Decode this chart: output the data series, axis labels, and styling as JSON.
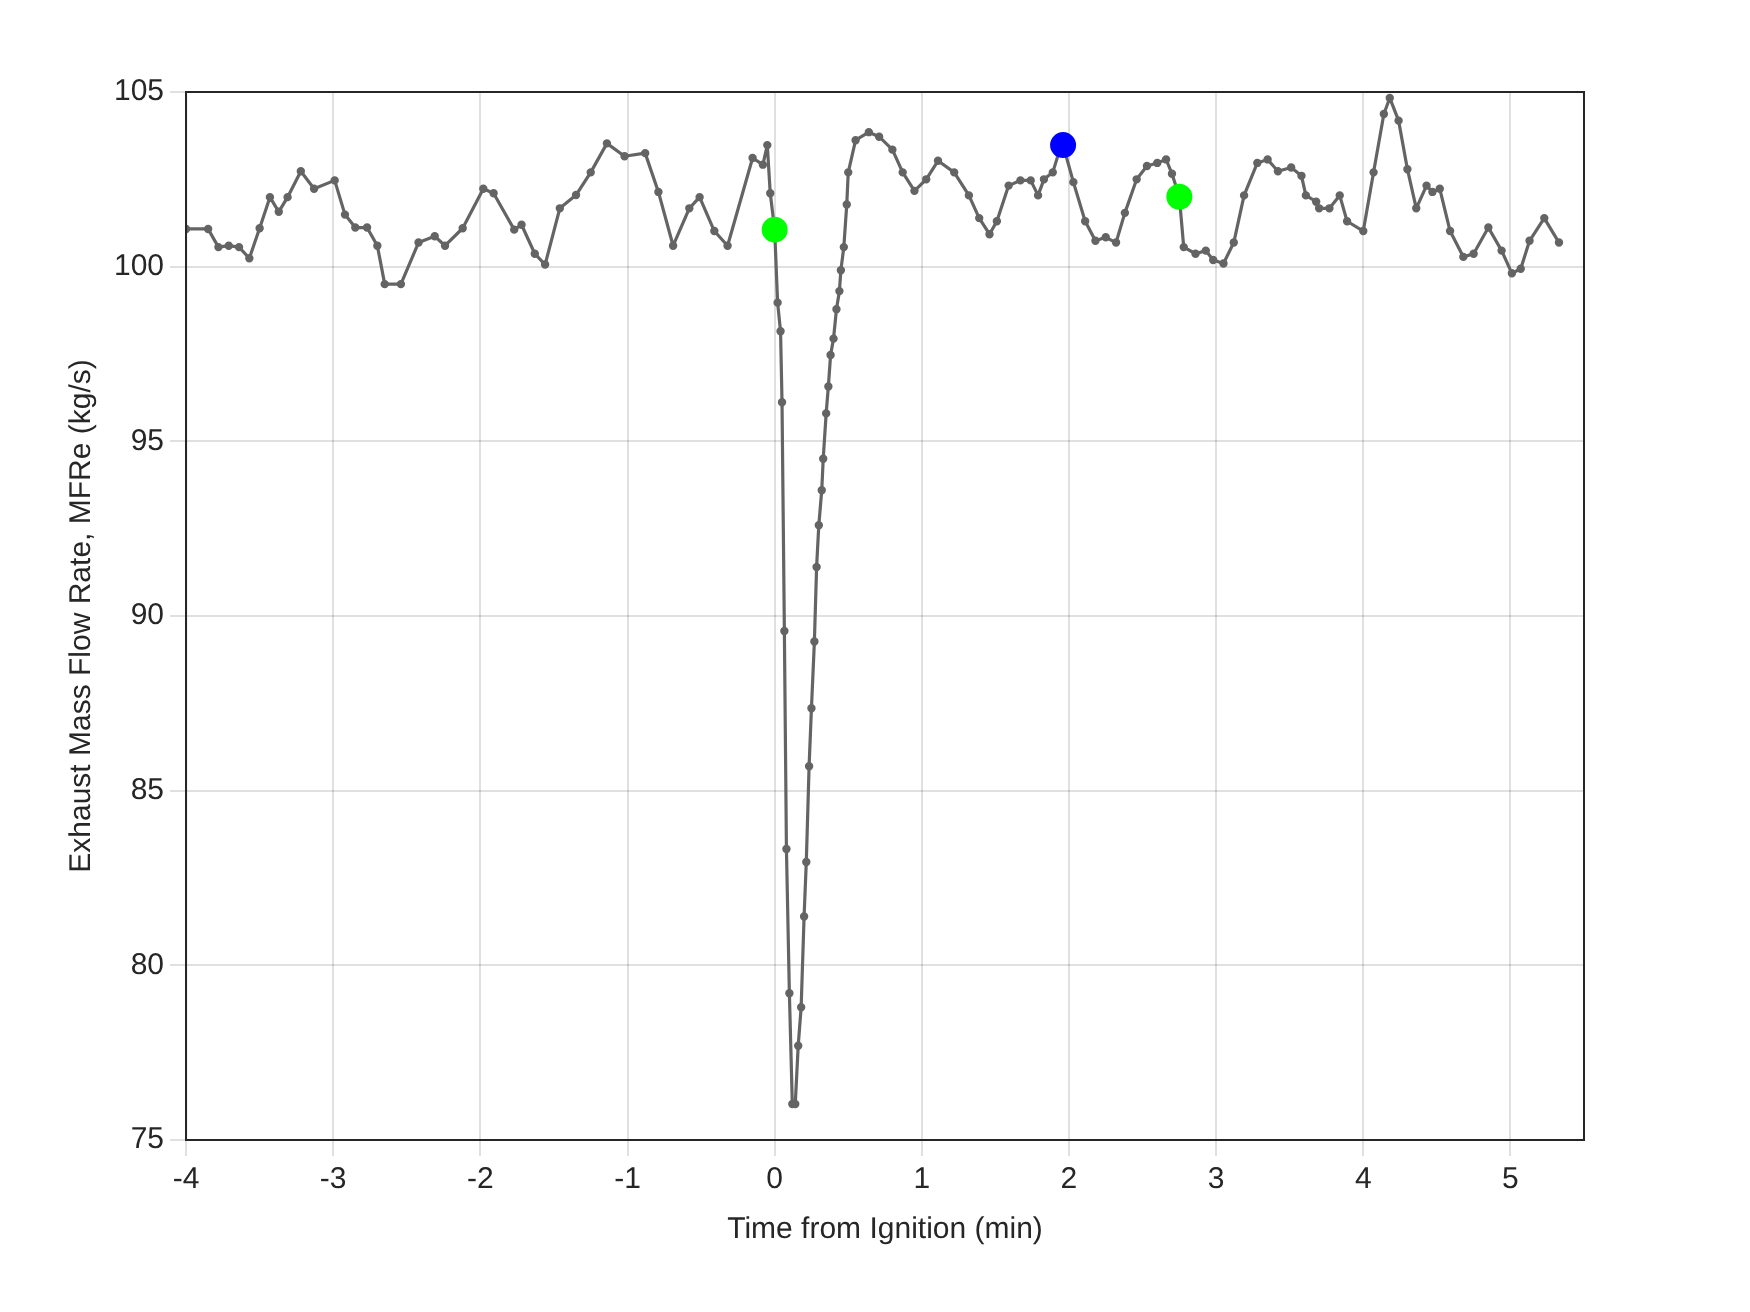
{
  "chart_data": {
    "type": "line",
    "xlabel": "Time from Ignition (min)",
    "ylabel": "Exhaust Mass Flow Rate, MFRe (kg/s)",
    "xlim": [
      -4,
      5.5
    ],
    "xticks": [
      -4,
      -3,
      -2,
      -1,
      0,
      1,
      2,
      3,
      4,
      5
    ],
    "ylim": [
      75,
      105
    ],
    "yticks": [
      75,
      80,
      85,
      90,
      95,
      100,
      105
    ],
    "grid": true,
    "marker": "circle",
    "line_style": "solid",
    "series": [
      {
        "color": "#646464",
        "x": [
          -4.0,
          -3.85,
          -3.78,
          -3.71,
          -3.64,
          -3.57,
          -3.5,
          -3.43,
          -3.37,
          -3.31,
          -3.22,
          -3.13,
          -2.99,
          -2.92,
          -2.85,
          -2.77,
          -2.7,
          -2.65,
          -2.54,
          -2.42,
          -2.31,
          -2.24,
          -2.12,
          -1.98,
          -1.91,
          -1.77,
          -1.72,
          -1.63,
          -1.56,
          -1.46,
          -1.35,
          -1.25,
          -1.14,
          -1.02,
          -0.88,
          -0.79,
          -0.69,
          -0.58,
          -0.51,
          -0.41,
          -0.32,
          -0.15,
          -0.08,
          -0.05,
          -0.03,
          0.0,
          0.02,
          0.04,
          0.05,
          0.066,
          0.08,
          0.1,
          0.12,
          0.14,
          0.16,
          0.18,
          0.2,
          0.215,
          0.234,
          0.25,
          0.27,
          0.285,
          0.3,
          0.32,
          0.33,
          0.35,
          0.365,
          0.38,
          0.4,
          0.42,
          0.44,
          0.45,
          0.47,
          0.49,
          0.5,
          0.55,
          0.64,
          0.71,
          0.8,
          0.87,
          0.95,
          1.03,
          1.11,
          1.22,
          1.32,
          1.39,
          1.46,
          1.51,
          1.59,
          1.67,
          1.74,
          1.79,
          1.83,
          1.89,
          1.93,
          1.96,
          2.03,
          2.11,
          2.18,
          2.25,
          2.32,
          2.38,
          2.46,
          2.53,
          2.6,
          2.66,
          2.7,
          2.75,
          2.78,
          2.86,
          2.93,
          2.98,
          3.05,
          3.12,
          3.19,
          3.28,
          3.35,
          3.42,
          3.51,
          3.58,
          3.61,
          3.68,
          3.7,
          3.77,
          3.84,
          3.89,
          4.0,
          4.07,
          4.14,
          4.18,
          4.24,
          4.3,
          4.36,
          4.43,
          4.47,
          4.52,
          4.59,
          4.68,
          4.75,
          4.85,
          4.94,
          5.01,
          5.07,
          5.13,
          5.23,
          5.33
        ],
        "values": [
          101.08,
          101.08,
          100.56,
          100.6,
          100.56,
          100.24,
          101.1,
          101.99,
          101.57,
          101.99,
          102.73,
          102.23,
          102.47,
          101.49,
          101.12,
          101.12,
          100.6,
          99.5,
          99.5,
          100.69,
          100.87,
          100.6,
          101.1,
          102.23,
          102.1,
          101.06,
          101.2,
          100.37,
          100.06,
          101.67,
          102.05,
          102.7,
          103.53,
          103.16,
          103.25,
          102.14,
          100.6,
          101.67,
          101.99,
          101.02,
          100.6,
          103.11,
          102.92,
          103.48,
          102.1,
          101.06,
          98.97,
          98.15,
          96.12,
          89.57,
          83.33,
          79.2,
          76.03,
          76.03,
          77.7,
          78.8,
          81.4,
          82.96,
          85.7,
          87.36,
          89.27,
          91.4,
          92.6,
          93.6,
          94.5,
          95.8,
          96.57,
          97.47,
          97.94,
          98.78,
          99.3,
          99.9,
          100.56,
          101.78,
          102.7,
          103.62,
          103.85,
          103.72,
          103.35,
          102.7,
          102.17,
          102.5,
          103.03,
          102.7,
          102.04,
          101.39,
          100.93,
          101.3,
          102.32,
          102.47,
          102.47,
          102.04,
          102.5,
          102.7,
          103.25,
          103.48,
          102.42,
          101.3,
          100.74,
          100.84,
          100.69,
          101.54,
          102.5,
          102.88,
          102.97,
          103.07,
          102.66,
          102.0,
          100.56,
          100.37,
          100.46,
          100.19,
          100.09,
          100.69,
          102.04,
          102.97,
          103.07,
          102.73,
          102.84,
          102.6,
          102.04,
          101.86,
          101.67,
          101.67,
          102.04,
          101.3,
          101.02,
          102.7,
          104.37,
          104.83,
          104.18,
          102.79,
          101.67,
          102.32,
          102.14,
          102.23,
          101.02,
          100.28,
          100.37,
          101.12,
          100.46,
          99.81,
          99.94,
          100.74,
          101.39,
          100.69
        ]
      },
      {
        "type": "scatter",
        "color": "#00ff00",
        "x": [
          0.0,
          2.75
        ],
        "values": [
          101.06,
          102.0
        ]
      },
      {
        "type": "scatter",
        "color": "#0000ff",
        "x": [
          1.96
        ],
        "values": [
          103.48
        ]
      }
    ]
  }
}
